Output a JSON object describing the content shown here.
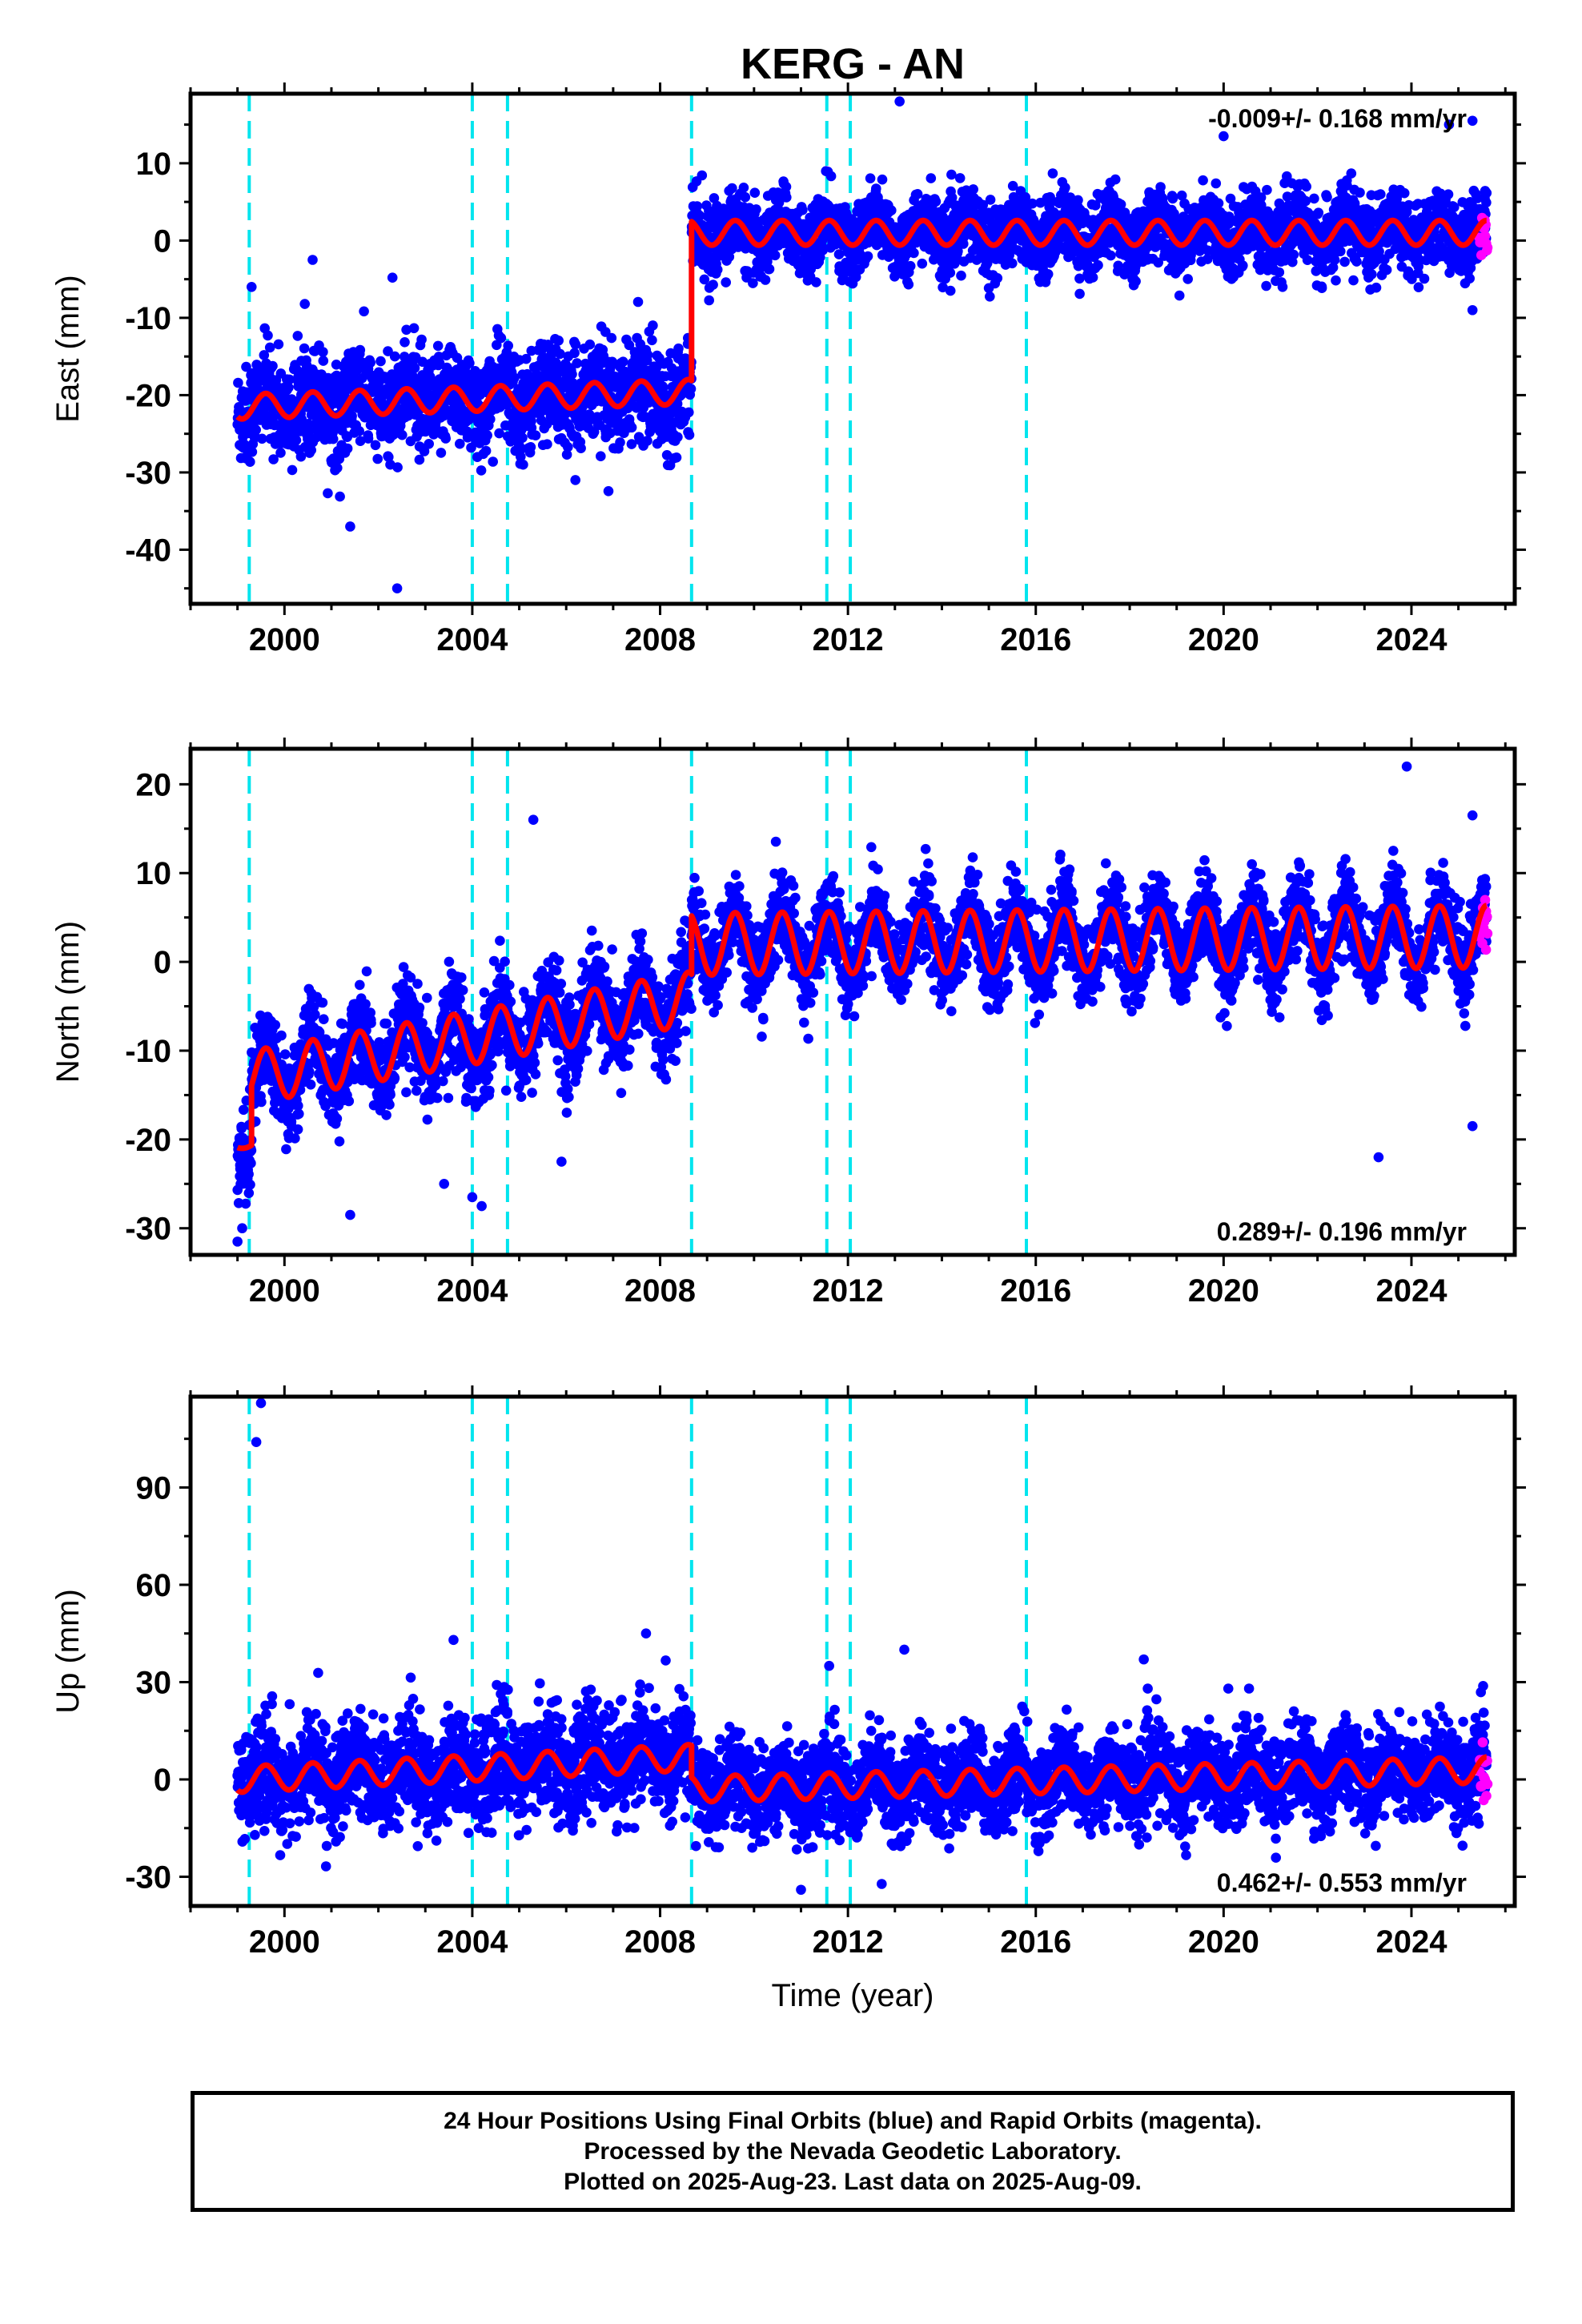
{
  "title": "KERG - AN",
  "colors": {
    "final_orbits": "#0000ff",
    "rapid_orbits": "#ff00ff",
    "model": "#ff0000",
    "events": "#00e5ee"
  },
  "chart_data": [
    {
      "type": "scatter",
      "title": "KERG - AN",
      "xlabel": "",
      "ylabel": "East (mm)",
      "xlim": [
        1998.0,
        2026.2
      ],
      "ylim": [
        -47,
        19
      ],
      "xticks": [
        2000,
        2004,
        2008,
        2012,
        2016,
        2020,
        2024
      ],
      "yticks": [
        -40,
        -30,
        -20,
        -10,
        0,
        10
      ],
      "annotation": "-0.009+/- 0.168 mm/yr",
      "annotation_position": "top-right",
      "event_lines": [
        1999.25,
        2004.0,
        2004.75,
        2008.67,
        2011.55,
        2012.05,
        2015.8
      ],
      "series": [
        {
          "type": "scatter",
          "color": "#0000ff",
          "segments": [
            {
              "start": 1999.0,
              "end": 2008.67,
              "base": -21.5,
              "trend": 0.2,
              "amplitude": 1.6,
              "spread": 3.2
            },
            {
              "start": 2008.67,
              "end": 2025.6,
              "base": 1.0,
              "trend": 0.0,
              "amplitude": 1.6,
              "spread": 2.3
            }
          ]
        },
        {
          "type": "scatter",
          "color": "#ff00ff",
          "segments": [
            {
              "start": 2025.45,
              "end": 2025.62,
              "base": 0.5,
              "trend": 0.0,
              "amplitude": 0,
              "spread": 1.4
            }
          ]
        },
        {
          "type": "line",
          "color": "#ff0000",
          "segments": [
            {
              "start": 1999.0,
              "end": 2008.67,
              "base": -21.5,
              "trend": 0.2,
              "amplitude": 1.6
            },
            {
              "start": 2008.67,
              "end": 2025.6,
              "base": 1.0,
              "trend": 0.0,
              "amplitude": 1.6
            }
          ]
        }
      ],
      "outliers": [
        [
          2000.6,
          -2.5
        ],
        [
          2002.3,
          -4.8
        ],
        [
          2002.4,
          -45
        ],
        [
          1999.3,
          -6
        ],
        [
          2001.4,
          -37
        ],
        [
          2013.1,
          18
        ],
        [
          2020.0,
          13.5
        ],
        [
          2025.3,
          15.5
        ],
        [
          2025.3,
          -9
        ],
        [
          2024.8,
          15
        ]
      ]
    },
    {
      "type": "scatter",
      "title": "",
      "xlabel": "",
      "ylabel": "North (mm)",
      "xlim": [
        1998.0,
        2026.2
      ],
      "ylim": [
        -33,
        24
      ],
      "xticks": [
        2000,
        2004,
        2008,
        2012,
        2016,
        2020,
        2024
      ],
      "yticks": [
        -30,
        -20,
        -10,
        0,
        10,
        20
      ],
      "annotation": "0.289+/- 0.196 mm/yr",
      "annotation_position": "bottom-right",
      "event_lines": [
        1999.25,
        2004.0,
        2004.75,
        2008.67,
        2011.55,
        2012.05,
        2015.8
      ],
      "series": [
        {
          "type": "scatter",
          "color": "#0000ff",
          "segments": [
            {
              "start": 1999.0,
              "end": 1999.3,
              "base": -20.5,
              "trend": 0.0,
              "amplitude": 1.0,
              "spread": 2.5
            },
            {
              "start": 1999.3,
              "end": 2008.67,
              "base": -13.0,
              "trend": 0.95,
              "amplitude": 3.0,
              "spread": 2.6
            },
            {
              "start": 2008.67,
              "end": 2025.6,
              "base": 2.0,
              "trend": 0.05,
              "amplitude": 3.5,
              "spread": 2.4
            }
          ]
        },
        {
          "type": "scatter",
          "color": "#ff00ff",
          "segments": [
            {
              "start": 2025.45,
              "end": 2025.62,
              "base": 4.0,
              "trend": 0.0,
              "amplitude": 0,
              "spread": 1.6
            }
          ]
        },
        {
          "type": "line",
          "color": "#ff0000",
          "segments": [
            {
              "start": 1999.0,
              "end": 1999.3,
              "base": -20.5,
              "trend": 0.0,
              "amplitude": 0.5
            },
            {
              "start": 1999.3,
              "end": 2008.67,
              "base": -13.0,
              "trend": 0.95,
              "amplitude": 3.0
            },
            {
              "start": 2008.67,
              "end": 2025.6,
              "base": 2.0,
              "trend": 0.05,
              "amplitude": 3.5
            }
          ]
        }
      ],
      "outliers": [
        [
          1999.0,
          -31.5
        ],
        [
          1999.1,
          -30
        ],
        [
          2001.4,
          -28.5
        ],
        [
          2003.4,
          -25
        ],
        [
          2004.0,
          -26.5
        ],
        [
          2004.2,
          -27.5
        ],
        [
          2005.9,
          -22.5
        ],
        [
          2005.3,
          16
        ],
        [
          2023.3,
          -22
        ],
        [
          2025.3,
          -18.5
        ],
        [
          2023.9,
          22
        ],
        [
          2025.3,
          16.5
        ]
      ]
    },
    {
      "type": "scatter",
      "title": "",
      "xlabel": "Time (year)",
      "ylabel": "Up (mm)",
      "xlim": [
        1998.0,
        2026.2
      ],
      "ylim": [
        -39,
        118
      ],
      "xticks": [
        2000,
        2004,
        2008,
        2012,
        2016,
        2020,
        2024
      ],
      "yticks": [
        -30,
        0,
        30,
        60,
        90
      ],
      "annotation": "0.462+/- 0.553 mm/yr",
      "annotation_position": "bottom-right",
      "event_lines": [
        1999.25,
        2004.0,
        2004.75,
        2008.67,
        2011.55,
        2012.05,
        2015.8
      ],
      "series": [
        {
          "type": "scatter",
          "color": "#0000ff",
          "segments": [
            {
              "start": 1999.0,
              "end": 2008.67,
              "base": 0.0,
              "trend": 0.7,
              "amplitude": 4.0,
              "spread": 8.0
            },
            {
              "start": 2008.67,
              "end": 2025.6,
              "base": -3.0,
              "trend": 0.35,
              "amplitude": 4.0,
              "spread": 7.0
            }
          ]
        },
        {
          "type": "scatter",
          "color": "#ff00ff",
          "segments": [
            {
              "start": 2025.45,
              "end": 2025.62,
              "base": 2.0,
              "trend": 0.0,
              "amplitude": 0,
              "spread": 4.0
            }
          ]
        },
        {
          "type": "line",
          "color": "#ff0000",
          "segments": [
            {
              "start": 1999.0,
              "end": 2008.67,
              "base": 0.0,
              "trend": 0.7,
              "amplitude": 4.0
            },
            {
              "start": 2008.67,
              "end": 2025.6,
              "base": -3.0,
              "trend": 0.35,
              "amplitude": 4.0
            }
          ]
        }
      ],
      "outliers": [
        [
          1999.4,
          104
        ],
        [
          1999.5,
          116
        ],
        [
          2003.6,
          43
        ],
        [
          2007.7,
          45
        ],
        [
          2011.6,
          35
        ],
        [
          2013.2,
          40
        ],
        [
          2018.3,
          37
        ],
        [
          2011.0,
          -34
        ],
        [
          2020.1,
          28
        ]
      ]
    }
  ],
  "footer": {
    "lines": [
      "24 Hour Positions Using Final Orbits (blue) and Rapid Orbits (magenta).",
      "Processed by the Nevada Geodetic Laboratory.",
      "Plotted on 2025-Aug-23. Last data on 2025-Aug-09."
    ]
  }
}
